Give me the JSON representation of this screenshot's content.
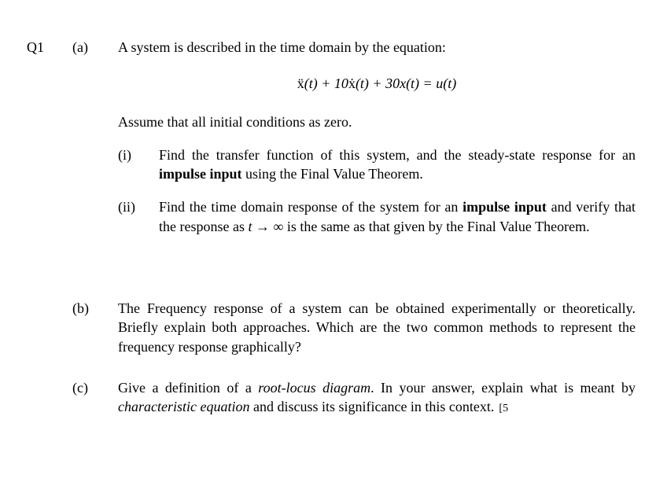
{
  "header_fragment": "",
  "question": {
    "number": "Q1",
    "parts": {
      "a": {
        "label": "(a)",
        "intro": "A system is described in the time domain by the equation:",
        "equation_html": "<span style=\"font-style:normal\">ẍ</span>(t) + 10<span style=\"font-style:normal\">ẋ</span>(t) + 30x(t) = u(t)",
        "assume": "Assume that all initial conditions as zero.",
        "subs": {
          "i": {
            "label": "(i)",
            "text_html": "Find the transfer function of this system, and the steady-state response for an <b>impulse input</b> using the Final Value Theorem.",
            "mark": ""
          },
          "ii": {
            "label": "(ii)",
            "text_html": "Find the time domain response of the system for an <b>impulse input</b> and verify that the response as <i>t</i> → ∞ is the same as that given by the Final Value Theorem.",
            "mark": ""
          }
        }
      },
      "b": {
        "label": "(b)",
        "text": "The Frequency response of a system can be obtained experimentally or theoretically. Briefly explain both approaches. Which are the two common methods to represent the frequency response graphically?"
      },
      "c": {
        "label": "(c)",
        "text_html": "Give a definition of a <i>root-locus diagram</i>. In your answer, explain what is meant by <i>characteristic equation</i> and discuss its significance in this context.",
        "mark": "[5"
      }
    }
  },
  "style": {
    "font_family": "Times New Roman",
    "font_size_pt": 13,
    "text_color": "#000000",
    "background_color": "#ffffff"
  }
}
